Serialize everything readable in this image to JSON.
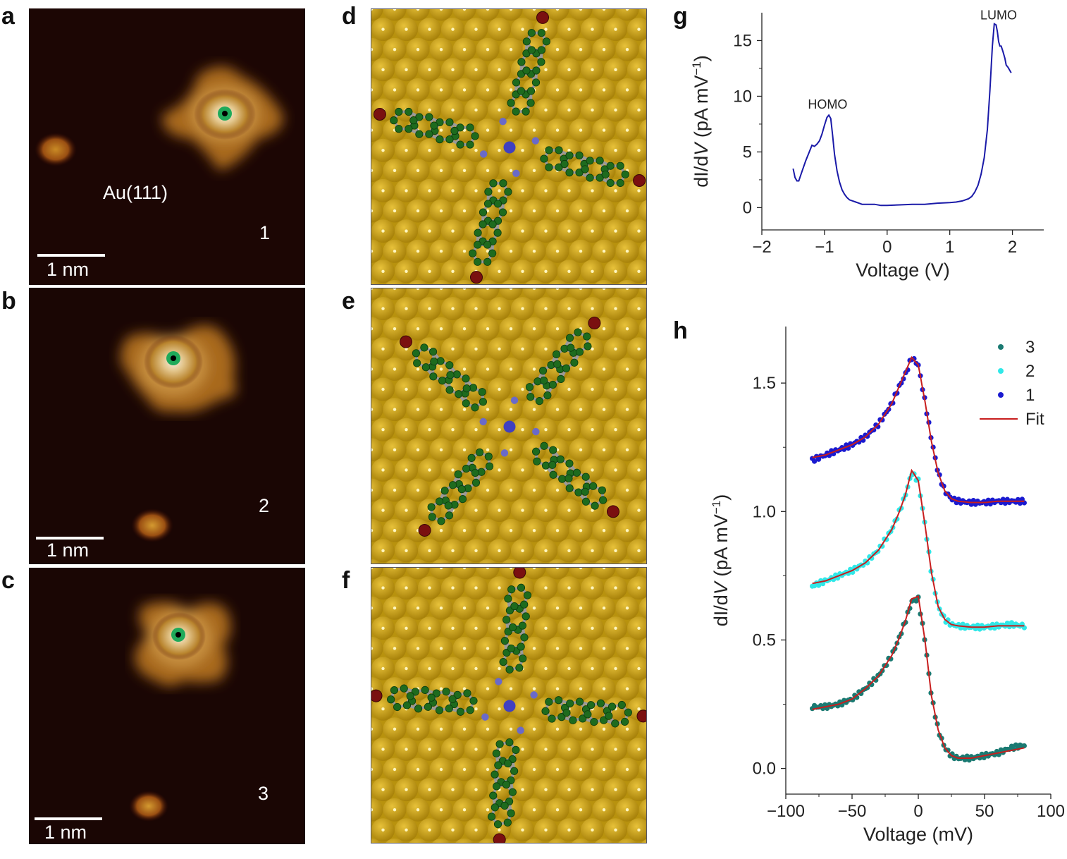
{
  "panel_labels": {
    "a": "a",
    "b": "b",
    "c": "c",
    "d": "d",
    "e": "e",
    "f": "f",
    "g": "g",
    "h": "h"
  },
  "stm_images": [
    {
      "letter": "a",
      "substrate_label": "Au(111)",
      "index_label": "1",
      "scale_bar_label": "1 nm"
    },
    {
      "letter": "b",
      "index_label": "2",
      "scale_bar_label": "1 nm"
    },
    {
      "letter": "c",
      "index_label": "3",
      "scale_bar_label": "1 nm"
    }
  ],
  "colors": {
    "stm_bg": "#1a0505",
    "stm_molecule": "#c08a2e",
    "stm_center": "#f3ece0",
    "tip_marker": "#1faa5a",
    "gold": "#c9a012",
    "carbon": "#1e6b1e",
    "hydrogen": "#d8d8d8",
    "nitrogen": "#6a6ac8",
    "bromine": "#7a1010",
    "cobalt": "#4040c0",
    "dos_line": "#1a1aa8",
    "series3": "#1a7a72",
    "series2": "#30e8e8",
    "series1": "#1a1ad0",
    "fit": "#c81e1e"
  },
  "chart_data": [
    {
      "type": "line",
      "panel": "g",
      "title": "",
      "xlabel": "Voltage (V)",
      "ylabel_parts": [
        "dI/d",
        "V",
        " (pA mV",
        "−1",
        ")"
      ],
      "xlim": [
        -2,
        2.5
      ],
      "ylim": [
        -2,
        17.5
      ],
      "xticks": [
        -2,
        -1,
        0,
        1,
        2
      ],
      "xtick_labels": [
        "−2",
        "−1",
        "0",
        "1",
        "2"
      ],
      "yticks": [
        0,
        5,
        10,
        15
      ],
      "ytick_labels": [
        "0",
        "5",
        "10",
        "15"
      ],
      "annotations": [
        {
          "text": "HOMO",
          "x": -0.95,
          "y": 8.9
        },
        {
          "text": "LUMO",
          "x": 1.78,
          "y": 16.9
        }
      ],
      "series": [
        {
          "name": "dI/dV",
          "x": [
            -1.5,
            -1.47,
            -1.44,
            -1.41,
            -1.38,
            -1.35,
            -1.3,
            -1.25,
            -1.2,
            -1.16,
            -1.12,
            -1.08,
            -1.04,
            -1.0,
            -0.96,
            -0.93,
            -0.9,
            -0.87,
            -0.84,
            -0.8,
            -0.76,
            -0.72,
            -0.68,
            -0.64,
            -0.6,
            -0.55,
            -0.5,
            -0.45,
            -0.4,
            -0.3,
            -0.2,
            -0.1,
            0.0,
            0.2,
            0.4,
            0.6,
            0.8,
            1.0,
            1.1,
            1.2,
            1.3,
            1.35,
            1.4,
            1.45,
            1.5,
            1.55,
            1.6,
            1.64,
            1.68,
            1.71,
            1.74,
            1.76,
            1.78,
            1.8,
            1.82,
            1.85,
            1.88,
            1.9,
            1.93,
            1.96,
            1.98
          ],
          "values": [
            3.5,
            2.7,
            2.4,
            2.4,
            2.9,
            3.4,
            4.2,
            4.9,
            5.6,
            5.5,
            5.7,
            6.0,
            6.6,
            7.4,
            8.1,
            8.3,
            8.0,
            6.5,
            4.8,
            3.3,
            2.3,
            1.6,
            1.2,
            0.9,
            0.7,
            0.6,
            0.5,
            0.4,
            0.3,
            0.3,
            0.3,
            0.2,
            0.2,
            0.25,
            0.3,
            0.3,
            0.4,
            0.45,
            0.5,
            0.6,
            0.8,
            1.0,
            1.4,
            2.0,
            3.0,
            4.5,
            7.0,
            10.5,
            14.5,
            16.5,
            16.4,
            15.8,
            14.9,
            14.5,
            14.5,
            14.0,
            13.4,
            12.8,
            12.6,
            12.3,
            12.1
          ]
        }
      ]
    },
    {
      "type": "scatter",
      "panel": "h",
      "title": "",
      "xlabel": "Voltage (mV)",
      "ylabel_parts": [
        "dI/d",
        "V",
        " (pA mV",
        "−1",
        ")"
      ],
      "xlim": [
        -100,
        100
      ],
      "ylim": [
        -0.1,
        1.72
      ],
      "xticks": [
        -100,
        -50,
        0,
        50,
        100
      ],
      "xtick_labels": [
        "−100",
        "−50",
        "0",
        "50",
        "100"
      ],
      "yticks": [
        0,
        0.5,
        1.0,
        1.5
      ],
      "ytick_labels": [
        "0.0",
        "0.5",
        "1.0",
        "1.5"
      ],
      "legend_position": "top-right",
      "legend": [
        {
          "label": "3",
          "kind": "marker",
          "color_key": "series3"
        },
        {
          "label": "2",
          "kind": "marker",
          "color_key": "series2"
        },
        {
          "label": "1",
          "kind": "marker",
          "color_key": "series1"
        },
        {
          "label": "Fit",
          "kind": "line",
          "color_key": "fit"
        }
      ],
      "x": [
        -80,
        -70,
        -60,
        -50,
        -40,
        -30,
        -20,
        -15,
        -10,
        -5,
        0,
        5,
        10,
        15,
        20,
        25,
        30,
        40,
        50,
        60,
        70,
        80
      ],
      "series": [
        {
          "name": "1",
          "color_key": "series1",
          "values": [
            1.2,
            1.22,
            1.24,
            1.26,
            1.29,
            1.34,
            1.42,
            1.48,
            1.53,
            1.6,
            1.57,
            1.43,
            1.28,
            1.15,
            1.08,
            1.05,
            1.04,
            1.035,
            1.035,
            1.04,
            1.04,
            1.04
          ]
        },
        {
          "name": "2",
          "color_key": "series2",
          "values": [
            0.71,
            0.73,
            0.75,
            0.77,
            0.8,
            0.85,
            0.93,
            0.99,
            1.06,
            1.15,
            1.12,
            0.95,
            0.76,
            0.63,
            0.58,
            0.56,
            0.555,
            0.55,
            0.55,
            0.555,
            0.56,
            0.555
          ]
        },
        {
          "name": "3",
          "color_key": "series3",
          "values": [
            0.24,
            0.24,
            0.25,
            0.27,
            0.31,
            0.36,
            0.44,
            0.5,
            0.57,
            0.65,
            0.66,
            0.5,
            0.28,
            0.15,
            0.08,
            0.05,
            0.04,
            0.04,
            0.05,
            0.06,
            0.08,
            0.09
          ]
        },
        {
          "name": "Fit",
          "color_key": "fit",
          "values": [
            1.21,
            1.22,
            1.24,
            1.26,
            1.29,
            1.34,
            1.42,
            1.48,
            1.54,
            1.6,
            1.57,
            1.43,
            1.27,
            1.15,
            1.08,
            1.05,
            1.04,
            1.035,
            1.035,
            1.04,
            1.04,
            1.04
          ]
        },
        {
          "name": "Fit",
          "color_key": "fit",
          "values": [
            0.72,
            0.73,
            0.75,
            0.77,
            0.8,
            0.85,
            0.93,
            0.99,
            1.06,
            1.16,
            1.12,
            0.95,
            0.76,
            0.63,
            0.58,
            0.56,
            0.555,
            0.55,
            0.55,
            0.555,
            0.555,
            0.555
          ]
        },
        {
          "name": "Fit",
          "color_key": "fit",
          "values": [
            0.23,
            0.24,
            0.25,
            0.27,
            0.31,
            0.36,
            0.44,
            0.5,
            0.57,
            0.66,
            0.67,
            0.5,
            0.28,
            0.15,
            0.08,
            0.05,
            0.04,
            0.04,
            0.05,
            0.06,
            0.07,
            0.08
          ]
        }
      ]
    }
  ]
}
